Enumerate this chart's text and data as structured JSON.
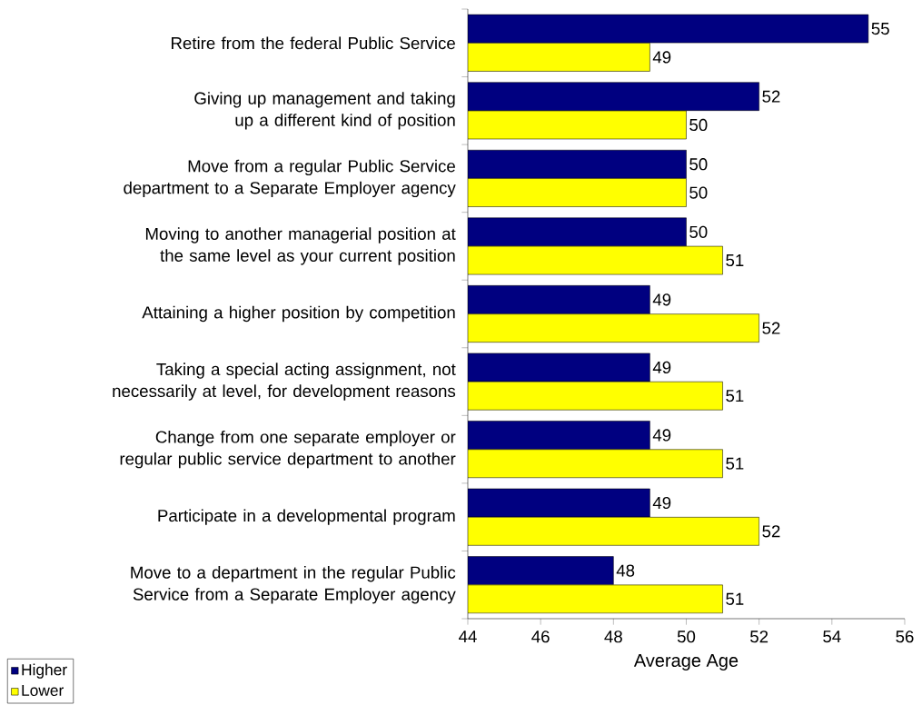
{
  "chart_data": {
    "type": "bar",
    "orientation": "horizontal",
    "xlabel": "Average Age",
    "categories": [
      "Retire from the federal Public Service",
      "Giving up management and taking up a different kind of position",
      "Move from a regular Public Service department to a Separate Employer agency",
      "Moving to another managerial position at the same level as your current position",
      "Attaining a higher position by competition",
      "Taking a special acting assignment, not necessarily at level, for development reasons",
      "Change from one separate employer or regular public service department to another",
      "Participate in a developmental program",
      "Move to a department in the regular Public Service from a Separate Employer agency"
    ],
    "series": [
      {
        "name": "Higher",
        "color": "#000080",
        "values": [
          55,
          52,
          50,
          50,
          49,
          49,
          49,
          49,
          48
        ]
      },
      {
        "name": "Lower",
        "color": "#ffff00",
        "values": [
          49,
          50,
          50,
          51,
          52,
          51,
          51,
          52,
          51
        ]
      }
    ],
    "xlim": [
      44,
      56
    ],
    "xticks": [
      44,
      46,
      48,
      50,
      52,
      54,
      56
    ],
    "data_labels": true,
    "legend": "bottom left",
    "grid": false
  }
}
